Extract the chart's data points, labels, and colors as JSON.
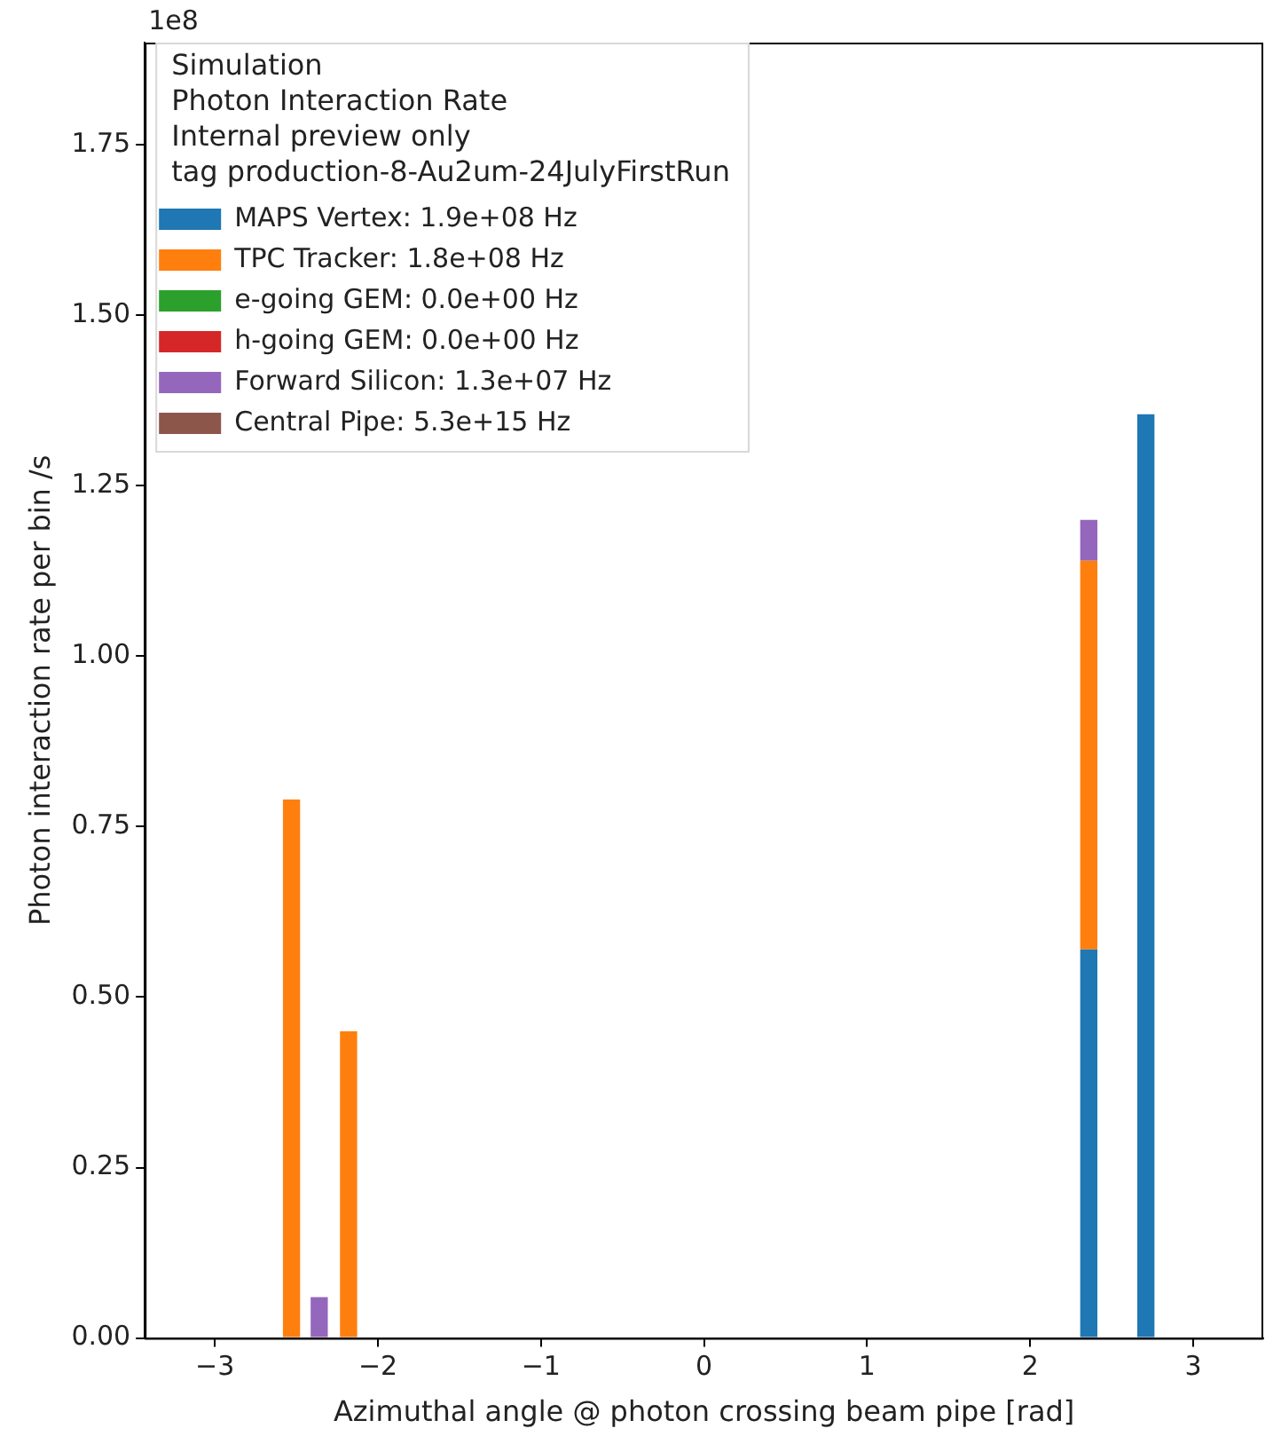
{
  "chart_data": {
    "type": "bar",
    "stacked": true,
    "legend_title": "Simulation\nPhoton Interaction Rate\nInternal preview only\ntag production-8-Au2um-24JulyFirstRun",
    "xlabel": "Azimuthal angle @ photon crossing beam pipe [rad]",
    "ylabel": "Photon interaction rate per bin /s",
    "annotations": [
      "1e8"
    ],
    "x": [
      -2.53,
      -2.36,
      -2.18,
      2.36,
      2.71
    ],
    "series": [
      {
        "name": "MAPS Vertex: 1.9e+08 Hz",
        "color": "#1f77b4",
        "values": [
          0,
          0,
          0,
          0.57,
          1.355
        ]
      },
      {
        "name": "TPC Tracker: 1.8e+08 Hz",
        "color": "#ff7f0e",
        "values": [
          0.79,
          0,
          0.45,
          0.57,
          0
        ]
      },
      {
        "name": "e-going GEM: 0.0e+00 Hz",
        "color": "#2ca02c",
        "values": [
          0,
          0,
          0,
          0,
          0
        ]
      },
      {
        "name": "h-going GEM: 0.0e+00 Hz",
        "color": "#d62728",
        "values": [
          0,
          0,
          0,
          0,
          0
        ]
      },
      {
        "name": "Forward Silicon: 1.3e+07 Hz",
        "color": "#9467bd",
        "values": [
          0,
          0.06,
          0,
          0.06,
          0
        ]
      },
      {
        "name": "Central Pipe: 5.3e+15 Hz",
        "color": "#8c564b",
        "values": [
          0,
          0,
          0,
          0,
          0
        ]
      }
    ],
    "xlim": [
      -3.43,
      3.43
    ],
    "xticks": [
      {
        "value": -3,
        "label": "−3"
      },
      {
        "value": -2,
        "label": "−2"
      },
      {
        "value": -1,
        "label": "−1"
      },
      0,
      1,
      2,
      3
    ],
    "ylim": [
      0,
      1.9
    ],
    "yticks": [
      {
        "value": 0,
        "label": "0.00"
      },
      0.25,
      {
        "value": 0.5,
        "label": "0.50"
      },
      0.75,
      {
        "value": 1,
        "label": "1.00"
      },
      1.25,
      {
        "value": 1.5,
        "label": "1.50"
      },
      1.75
    ],
    "legend": "top left",
    "grid": false
  }
}
